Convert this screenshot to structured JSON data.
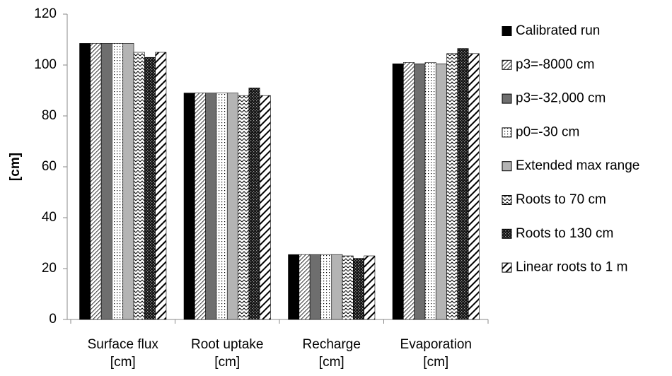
{
  "chart_data": {
    "type": "bar",
    "y_label": "[cm]",
    "categories": [
      [
        "Surface flux",
        "[cm]"
      ],
      [
        "Root uptake",
        "[cm]"
      ],
      [
        "Recharge",
        "[cm]"
      ],
      [
        "Evaporation",
        "[cm]"
      ]
    ],
    "ylim": [
      0,
      120
    ],
    "yticks": [
      0,
      20,
      40,
      60,
      80,
      100,
      120
    ],
    "legend": "right",
    "series": [
      {
        "name": "Calibrated run",
        "color": "#000000",
        "pattern": "solid",
        "values": [
          108.5,
          89,
          25.5,
          100.5
        ]
      },
      {
        "name": "p3=-8000 cm",
        "color": "#000000",
        "pattern": "hatch",
        "values": [
          108.5,
          89,
          25.5,
          101
        ]
      },
      {
        "name": "p3=-32,000 cm",
        "color": "#6e6e6e",
        "pattern": "solid",
        "values": [
          108.5,
          89,
          25.5,
          100.5
        ]
      },
      {
        "name": "p0=-30 cm",
        "color": "#000000",
        "pattern": "dots",
        "values": [
          108.5,
          89,
          25.5,
          101
        ]
      },
      {
        "name": "Extended max range",
        "color": "#b4b4b4",
        "pattern": "solid",
        "values": [
          108.5,
          89,
          25.5,
          100.5
        ]
      },
      {
        "name": "Roots to 70 cm",
        "color": "#000000",
        "pattern": "zigzag",
        "values": [
          105,
          88,
          25,
          104.5
        ]
      },
      {
        "name": "Roots to 130 cm",
        "color": "#000000",
        "pattern": "checker",
        "values": [
          103,
          91,
          24,
          106.5
        ]
      },
      {
        "name": "Linear roots to 1 m",
        "color": "#000000",
        "pattern": "thickhatch",
        "values": [
          105,
          88,
          25,
          104.5
        ]
      }
    ]
  }
}
